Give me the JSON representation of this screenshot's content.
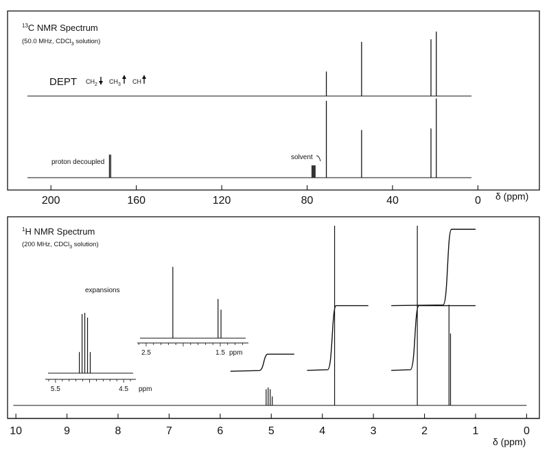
{
  "chart_data": [
    {
      "type": "line",
      "panel": "13C",
      "title_pre": "13",
      "title_main": "C  NMR Spectrum",
      "subtitle_pre": "(50.0  MHz,  CDCl",
      "subtitle_sub": "3",
      "subtitle_post": "  solution)",
      "xlabel": "δ (ppm)",
      "xlim": [
        220,
        -5
      ],
      "xticks": [
        200,
        160,
        120,
        80,
        40,
        0
      ],
      "dept": {
        "label": "DEPT",
        "legend": [
          {
            "pre": "CH",
            "sub": "2",
            "dir": "down"
          },
          {
            "pre": "CH",
            "sub": "3",
            "dir": "up"
          },
          {
            "pre": "CH",
            "sub": "",
            "dir": "up"
          }
        ],
        "peaks": [
          {
            "x": 71.0,
            "h": 0.38
          },
          {
            "x": 54.5,
            "h": 0.84
          },
          {
            "x": 22.0,
            "h": 0.88
          },
          {
            "x": 19.5,
            "h": 1.0
          }
        ]
      },
      "decoupled": {
        "label": "proton decoupled",
        "solvent_label": "solvent",
        "solvent_peak": {
          "x": 77.0,
          "h": 0.16
        },
        "peaks": [
          {
            "x": 172.6,
            "h": 0.3
          },
          {
            "x": 172.0,
            "h": 0.3
          },
          {
            "x": 71.0,
            "h": 1.0
          },
          {
            "x": 54.5,
            "h": 0.62
          },
          {
            "x": 22.0,
            "h": 0.64
          },
          {
            "x": 19.5,
            "h": 1.03
          }
        ]
      }
    },
    {
      "type": "line",
      "panel": "1H",
      "title_pre": "1",
      "title_main": "H  NMR Spectrum",
      "subtitle_pre": "(200 MHz,  CDCl",
      "subtitle_sub": "3",
      "subtitle_post": "  solution)",
      "xlabel": "δ (ppm)",
      "xlim": [
        10.15,
        -0.25
      ],
      "xticks": [
        10,
        9,
        8,
        7,
        6,
        5,
        4,
        3,
        2,
        1,
        0
      ],
      "spectrum_range": [
        10.05,
        0.0
      ],
      "peaks": [
        {
          "x": 5.1,
          "h": 0.09
        },
        {
          "x": 5.06,
          "h": 0.1
        },
        {
          "x": 5.02,
          "h": 0.09
        },
        {
          "x": 4.98,
          "h": 0.05
        },
        {
          "x": 3.76,
          "h": 1.0
        },
        {
          "x": 2.14,
          "h": 1.0
        },
        {
          "x": 1.52,
          "h": 0.56
        },
        {
          "x": 1.49,
          "h": 0.4
        }
      ],
      "integrals": [
        {
          "from": 5.8,
          "to": 4.55,
          "start": 0.19,
          "end": 0.285,
          "center": 5.1
        },
        {
          "from": 4.3,
          "to": 3.1,
          "start": 0.195,
          "end": 0.555,
          "center": 3.76
        },
        {
          "from": 2.65,
          "to": 1.0,
          "start": 0.195,
          "end": 0.555,
          "center": 2.14
        },
        {
          "from": 2.65,
          "to": 1.0,
          "start": 0.555,
          "end": 0.98,
          "center": 1.5
        }
      ],
      "expansions_label": "expansions",
      "expansions": [
        {
          "xlim": [
            5.65,
            4.32
          ],
          "xticks": [
            5.5,
            4.5
          ],
          "unit": "ppm",
          "peaks": [
            {
              "x": 5.15,
              "h": 0.35
            },
            {
              "x": 5.11,
              "h": 0.98
            },
            {
              "x": 5.07,
              "h": 1.0
            },
            {
              "x": 5.03,
              "h": 0.92
            },
            {
              "x": 4.99,
              "h": 0.35
            }
          ]
        },
        {
          "xlim": [
            2.62,
            1.12
          ],
          "xticks": [
            2.5,
            1.5
          ],
          "unit": "ppm",
          "peaks": [
            {
              "x": 2.14,
              "h": 1.0
            },
            {
              "x": 1.53,
              "h": 0.55
            },
            {
              "x": 1.49,
              "h": 0.4
            }
          ]
        }
      ]
    }
  ]
}
